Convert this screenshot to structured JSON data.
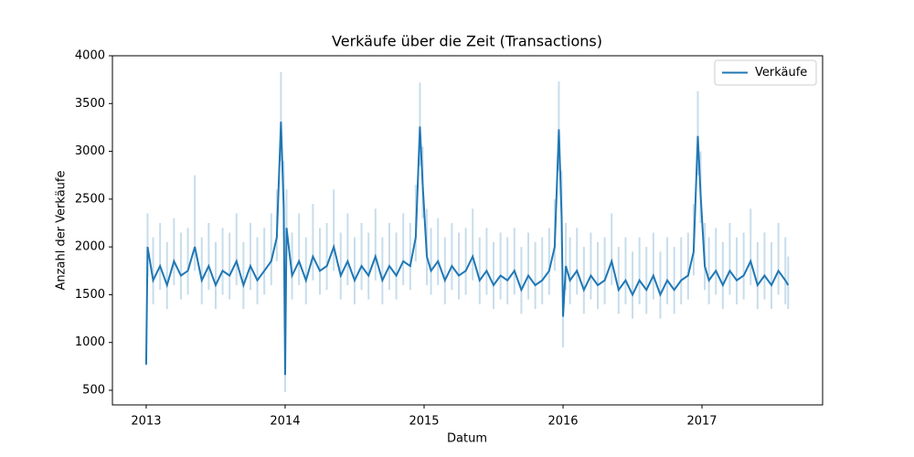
{
  "chart_data": {
    "type": "line",
    "title": "Verkäufe über die Zeit (Transactions)",
    "xlabel": "Datum",
    "ylabel": "Anzahl der Verkäufe",
    "xlim": [
      2012.757,
      2017.868
    ],
    "xticks": [
      2013,
      2014,
      2015,
      2016,
      2017
    ],
    "ylim": [
      347,
      4000
    ],
    "yticks": [
      500,
      1000,
      1500,
      2000,
      2500,
      3000,
      3500,
      4000
    ],
    "legend": "upper right",
    "band_opacity": 0.25,
    "x": [
      2013.0,
      2013.01,
      2013.05,
      2013.1,
      2013.15,
      2013.2,
      2013.25,
      2013.3,
      2013.35,
      2013.4,
      2013.45,
      2013.5,
      2013.55,
      2013.6,
      2013.65,
      2013.7,
      2013.75,
      2013.8,
      2013.85,
      2013.9,
      2013.94,
      2013.97,
      2013.99,
      2014.0,
      2014.01,
      2014.05,
      2014.1,
      2014.15,
      2014.2,
      2014.25,
      2014.3,
      2014.35,
      2014.4,
      2014.45,
      2014.5,
      2014.55,
      2014.6,
      2014.65,
      2014.7,
      2014.75,
      2014.8,
      2014.85,
      2014.9,
      2014.94,
      2014.97,
      2014.99,
      2015.02,
      2015.05,
      2015.1,
      2015.15,
      2015.2,
      2015.25,
      2015.3,
      2015.35,
      2015.4,
      2015.45,
      2015.5,
      2015.55,
      2015.6,
      2015.65,
      2015.7,
      2015.75,
      2015.8,
      2015.85,
      2015.9,
      2015.94,
      2015.97,
      2015.99,
      2016.0,
      2016.02,
      2016.05,
      2016.1,
      2016.15,
      2016.2,
      2016.25,
      2016.3,
      2016.35,
      2016.4,
      2016.45,
      2016.5,
      2016.55,
      2016.6,
      2016.65,
      2016.7,
      2016.75,
      2016.8,
      2016.85,
      2016.9,
      2016.94,
      2016.97,
      2016.99,
      2017.02,
      2017.05,
      2017.1,
      2017.15,
      2017.2,
      2017.25,
      2017.3,
      2017.35,
      2017.4,
      2017.45,
      2017.5,
      2017.55,
      2017.6,
      2017.62
    ],
    "series": [
      {
        "name": "Verkäufe",
        "color": "#1f77b4",
        "values": [
          770,
          2000,
          1650,
          1800,
          1600,
          1850,
          1700,
          1750,
          2000,
          1650,
          1800,
          1600,
          1750,
          1700,
          1850,
          1600,
          1800,
          1650,
          1750,
          1850,
          2100,
          3310,
          2400,
          660,
          2200,
          1700,
          1850,
          1650,
          1900,
          1750,
          1800,
          2000,
          1700,
          1850,
          1650,
          1800,
          1700,
          1900,
          1650,
          1800,
          1700,
          1850,
          1800,
          2100,
          3260,
          2650,
          1900,
          1750,
          1850,
          1650,
          1800,
          1700,
          1750,
          1900,
          1650,
          1750,
          1600,
          1700,
          1650,
          1750,
          1550,
          1700,
          1600,
          1650,
          1750,
          2000,
          3230,
          2300,
          1270,
          1800,
          1650,
          1750,
          1550,
          1700,
          1600,
          1650,
          1850,
          1550,
          1650,
          1500,
          1650,
          1550,
          1700,
          1500,
          1650,
          1550,
          1650,
          1700,
          1950,
          3160,
          2550,
          1800,
          1650,
          1750,
          1600,
          1750,
          1650,
          1700,
          1850,
          1600,
          1700,
          1600,
          1750,
          1650,
          1600
        ],
        "lower": [
          760,
          1700,
          1400,
          1550,
          1350,
          1600,
          1450,
          1500,
          1750,
          1400,
          1550,
          1350,
          1500,
          1450,
          1600,
          1350,
          1550,
          1400,
          1500,
          1600,
          1850,
          2900,
          2100,
          480,
          1900,
          1450,
          1600,
          1400,
          1650,
          1500,
          1550,
          1750,
          1450,
          1600,
          1400,
          1550,
          1450,
          1650,
          1400,
          1550,
          1450,
          1600,
          1550,
          1850,
          2850,
          2300,
          1600,
          1500,
          1600,
          1400,
          1550,
          1450,
          1500,
          1650,
          1400,
          1500,
          1350,
          1450,
          1400,
          1500,
          1300,
          1450,
          1350,
          1400,
          1500,
          1750,
          2800,
          2000,
          950,
          1550,
          1400,
          1500,
          1300,
          1450,
          1350,
          1400,
          1600,
          1300,
          1400,
          1250,
          1400,
          1300,
          1450,
          1250,
          1400,
          1300,
          1400,
          1450,
          1700,
          2750,
          2250,
          1550,
          1400,
          1500,
          1350,
          1500,
          1400,
          1450,
          1600,
          1350,
          1450,
          1350,
          1500,
          1400,
          1350
        ],
        "upper": [
          780,
          2350,
          2100,
          2250,
          2050,
          2300,
          2150,
          2200,
          2750,
          2100,
          2250,
          2050,
          2200,
          2150,
          2350,
          2050,
          2250,
          2100,
          2200,
          2350,
          2600,
          3830,
          2900,
          800,
          2600,
          2150,
          2350,
          2100,
          2450,
          2200,
          2250,
          2600,
          2150,
          2350,
          2100,
          2250,
          2150,
          2400,
          2100,
          2250,
          2150,
          2350,
          2250,
          2650,
          3720,
          3050,
          2400,
          2200,
          2300,
          2100,
          2250,
          2150,
          2200,
          2400,
          2100,
          2200,
          2050,
          2150,
          2100,
          2200,
          2000,
          2150,
          2050,
          2100,
          2200,
          2500,
          3730,
          2800,
          1600,
          2250,
          2100,
          2200,
          2000,
          2150,
          2050,
          2100,
          2350,
          2000,
          2100,
          1950,
          2100,
          2000,
          2150,
          1950,
          2100,
          2000,
          2100,
          2150,
          2450,
          3630,
          3000,
          2250,
          2100,
          2200,
          2050,
          2250,
          2100,
          2150,
          2400,
          2050,
          2150,
          2050,
          2250,
          2100,
          1900
        ]
      }
    ]
  }
}
